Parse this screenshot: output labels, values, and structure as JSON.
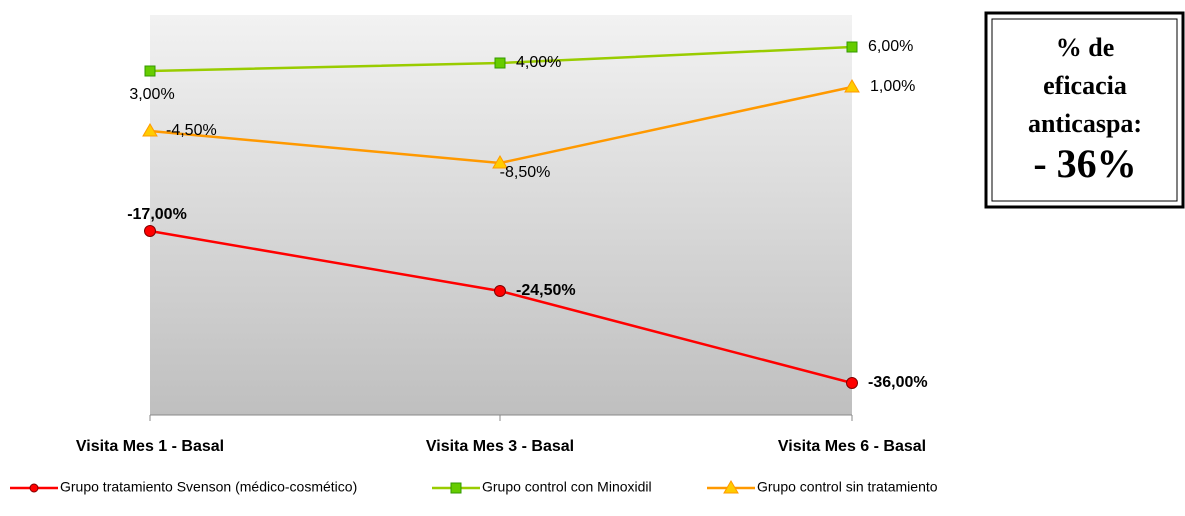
{
  "chart_data": {
    "type": "line",
    "categories": [
      "Visita Mes 1 - Basal",
      "Visita Mes 3 - Basal",
      "Visita Mes 6 - Basal"
    ],
    "series": [
      {
        "name": "Grupo tratamiento Svenson (médico-cosmético)",
        "color": "#ff0000",
        "values": [
          -17,
          -24.5,
          -36
        ],
        "value_labels": [
          "-17,00%",
          "-24,50%",
          "-36,00%"
        ]
      },
      {
        "name": "Grupo control con Minoxidil",
        "color": "#99cc00",
        "values": [
          3,
          4,
          6
        ],
        "value_labels": [
          "3,00%",
          "4,00%",
          "6,00%"
        ]
      },
      {
        "name": "Grupo control sin tratamiento",
        "color": "#ff9900",
        "values": [
          -4.5,
          -8.5,
          1
        ],
        "value_labels": [
          "-4,50%",
          "-8,50%",
          "1,00%"
        ]
      }
    ],
    "ylim": [
      -40,
      10
    ],
    "annotation": [
      "% de",
      "eficacia",
      "anticaspa:",
      "- 36%"
    ]
  }
}
